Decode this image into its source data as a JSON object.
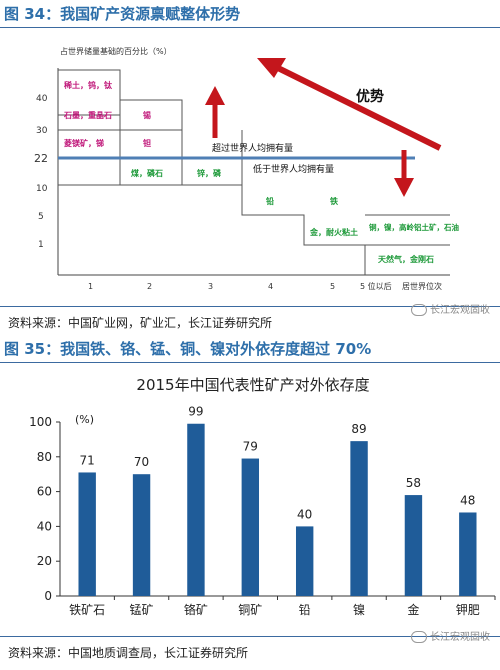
{
  "figure34": {
    "title": "图 34：我国矿产资源禀赋整体形势",
    "ylabel": "占世界储量基础的百分比（%）",
    "xlabel": "居世界位次",
    "y_ticks": [
      "40",
      "30",
      "22",
      "10",
      "5",
      "1"
    ],
    "x_ticks": [
      "1",
      "2",
      "3",
      "4",
      "5",
      "5 位以后"
    ],
    "minerals": [
      {
        "label": "稀土，钨，钛",
        "color": "#c0187a"
      },
      {
        "label": "石墨，重晶石",
        "color": "#c0187a"
      },
      {
        "label": "菱镁矿，锑",
        "color": "#c0187a"
      },
      {
        "label": "锡",
        "color": "#c0187a"
      },
      {
        "label": "钽",
        "color": "#c0187a"
      },
      {
        "label": "煤，磷石",
        "color": "#1e9a3a"
      },
      {
        "label": "锌，磷",
        "color": "#1e9a3a"
      },
      {
        "label": "铅",
        "color": "#1e9a3a"
      },
      {
        "label": "铁",
        "color": "#1e9a3a"
      },
      {
        "label": "金，耐火粘土",
        "color": "#1e9a3a"
      },
      {
        "label": "铜，镍，高岭铝土矿，石油",
        "color": "#1e9a3a"
      },
      {
        "label": "天然气，金刚石",
        "color": "#1e9a3a"
      }
    ],
    "above_label": "超过世界人均拥有量",
    "below_label": "低于世界人均拥有量",
    "advantage_label": "优势",
    "colors": {
      "arrow": "#c4161c",
      "divider": "#4f7fb5",
      "magenta": "#c0187a",
      "green": "#1e9a3a"
    },
    "source": "资料来源：中国矿业网，矿业汇，长江证券研究所"
  },
  "figure35": {
    "title": "图 35：我国铁、铬、锰、铜、镍对外依存度超过 70%",
    "source": "资料来源：中国地质调查局，长江证券研究所"
  },
  "watermark": "长江宏观固收",
  "chart_data": {
    "type": "bar",
    "title": "2015年中国代表性矿产对外依存度",
    "ylabel": "(%)",
    "categories": [
      "铁矿石",
      "锰矿",
      "铬矿",
      "铜矿",
      "铅",
      "镍",
      "金",
      "钾肥"
    ],
    "values": [
      71,
      70,
      99,
      79,
      40,
      89,
      58,
      48
    ],
    "ylim": [
      0,
      100
    ],
    "yticks": [
      0,
      20,
      40,
      60,
      80,
      100
    ],
    "bar_color": "#1f5c99",
    "grid": false
  }
}
